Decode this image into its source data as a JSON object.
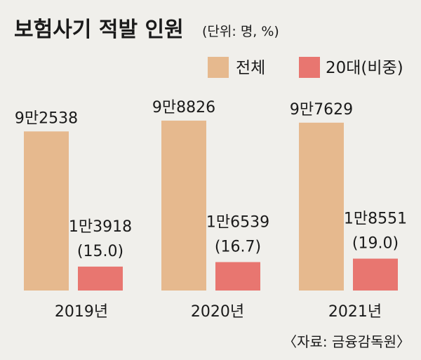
{
  "chart_data": {
    "type": "bar",
    "title": "보험사기 적발 인원",
    "unit": "(단위: 명, %)",
    "categories": [
      "2019년",
      "2020년",
      "2021년"
    ],
    "series": [
      {
        "name": "전체",
        "color": "#e6b98e",
        "values": [
          92538,
          98826,
          97629
        ],
        "labels": [
          "9만2538",
          "9만8826",
          "9만7629"
        ]
      },
      {
        "name": "20대(비중)",
        "color": "#e87670",
        "values": [
          13918,
          16539,
          18551
        ],
        "labels": [
          "1만3918",
          "1만6539",
          "1만8551"
        ],
        "shares": [
          "(15.0)",
          "(16.7)",
          "(19.0)"
        ]
      }
    ],
    "ylim": [
      0,
      100000
    ],
    "grid": false,
    "legend": "top-right",
    "source": "〈자료: 금융감독원〉"
  }
}
